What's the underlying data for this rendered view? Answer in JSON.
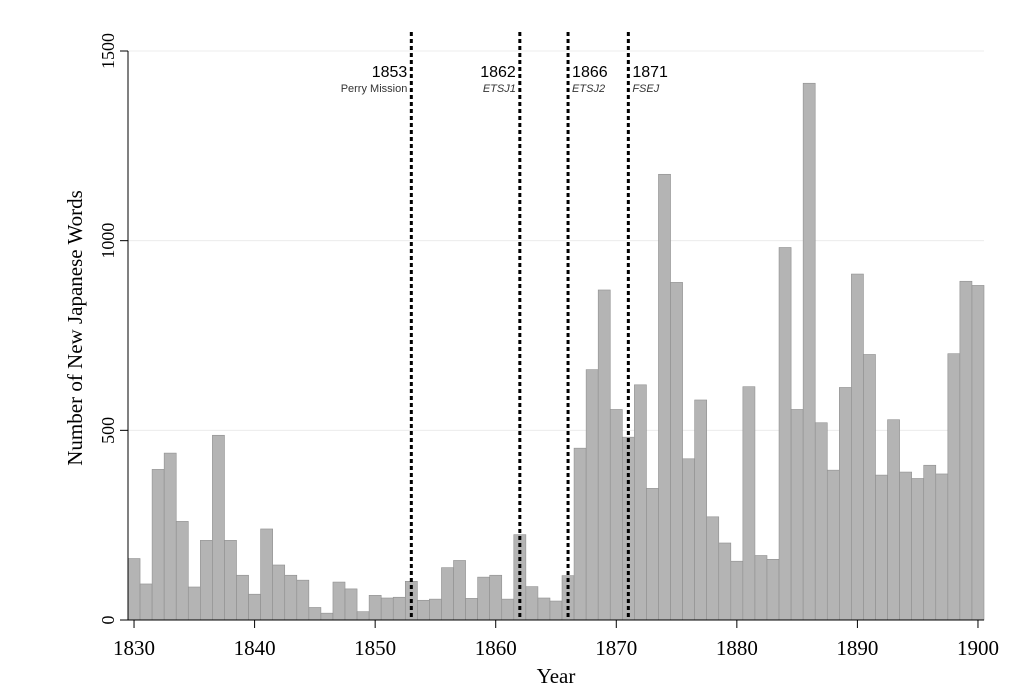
{
  "chart_data": {
    "type": "bar",
    "title": "",
    "xlabel": "Year",
    "ylabel": "Number of New Japanese Words",
    "xlim": [
      1829.5,
      1900.5
    ],
    "ylim": [
      0,
      1500
    ],
    "x_ticks": [
      1830,
      1840,
      1850,
      1860,
      1870,
      1880,
      1890,
      1900
    ],
    "y_ticks": [
      0,
      500,
      1000,
      1500
    ],
    "grid": true,
    "colors": {
      "bar": "#b4b4b4",
      "bar_edge": "#8f8f8f",
      "axis": "#000000",
      "grid": "#ececec"
    },
    "years": [
      1830,
      1831,
      1832,
      1833,
      1834,
      1835,
      1836,
      1837,
      1838,
      1839,
      1840,
      1841,
      1842,
      1843,
      1844,
      1845,
      1846,
      1847,
      1848,
      1849,
      1850,
      1851,
      1852,
      1853,
      1854,
      1855,
      1856,
      1857,
      1858,
      1859,
      1860,
      1861,
      1862,
      1863,
      1864,
      1865,
      1866,
      1867,
      1868,
      1869,
      1870,
      1871,
      1872,
      1873,
      1874,
      1875,
      1876,
      1877,
      1878,
      1879,
      1880,
      1881,
      1882,
      1883,
      1884,
      1885,
      1886,
      1887,
      1888,
      1889,
      1890,
      1891,
      1892,
      1893,
      1894,
      1895,
      1896,
      1897,
      1898,
      1899,
      1900
    ],
    "values": [
      162,
      95,
      397,
      440,
      260,
      87,
      210,
      487,
      210,
      118,
      68,
      240,
      145,
      118,
      105,
      33,
      18,
      100,
      82,
      22,
      65,
      58,
      60,
      102,
      52,
      55,
      138,
      157,
      57,
      113,
      118,
      55,
      225,
      88,
      58,
      50,
      117,
      453,
      660,
      870,
      555,
      482,
      620,
      347,
      1175,
      890,
      425,
      580,
      272,
      203,
      155,
      615,
      170,
      160,
      982,
      555,
      1415,
      520,
      395,
      613,
      912,
      700,
      382,
      528,
      390,
      373,
      408,
      385,
      702,
      893,
      882
    ],
    "events": [
      {
        "year": 1853,
        "label": "1853",
        "sublabel": "Perry Mission",
        "italic": false
      },
      {
        "year": 1862,
        "label": "1862",
        "sublabel": "ETSJ1",
        "italic": true
      },
      {
        "year": 1866,
        "label": "1866",
        "sublabel": "ETSJ2",
        "italic": true
      },
      {
        "year": 1871,
        "label": "1871",
        "sublabel": "FSEJ",
        "italic": true
      }
    ]
  }
}
